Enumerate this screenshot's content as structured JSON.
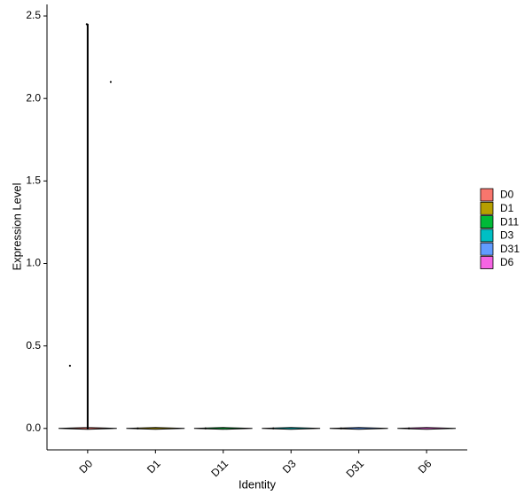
{
  "chart_data": {
    "type": "violin",
    "x_label": "Identity",
    "y_label": "Expression Level",
    "categories": [
      "D0",
      "D1",
      "D11",
      "D3",
      "D31",
      "D6"
    ],
    "series": [
      {
        "name": "D0",
        "color": "#F8766D",
        "points": [
          0.38,
          2.45,
          2.1,
          0
        ]
      },
      {
        "name": "D1",
        "color": "#B79F00",
        "points": [
          0
        ]
      },
      {
        "name": "D11",
        "color": "#00BA38",
        "points": [
          0
        ]
      },
      {
        "name": "D3",
        "color": "#00BFC4",
        "points": [
          0
        ]
      },
      {
        "name": "D31",
        "color": "#619CFF",
        "points": [
          0
        ]
      },
      {
        "name": "D6",
        "color": "#F564E3",
        "points": [
          0
        ]
      }
    ],
    "ylim": [
      -0.13,
      2.57
    ],
    "yticks": [
      {
        "value": 0,
        "label": "0.0"
      },
      0.5,
      {
        "value": 1,
        "label": "1.0"
      },
      1.5,
      {
        "value": 2,
        "label": "2.0"
      },
      2.5
    ],
    "grid": false,
    "legend": "right"
  }
}
